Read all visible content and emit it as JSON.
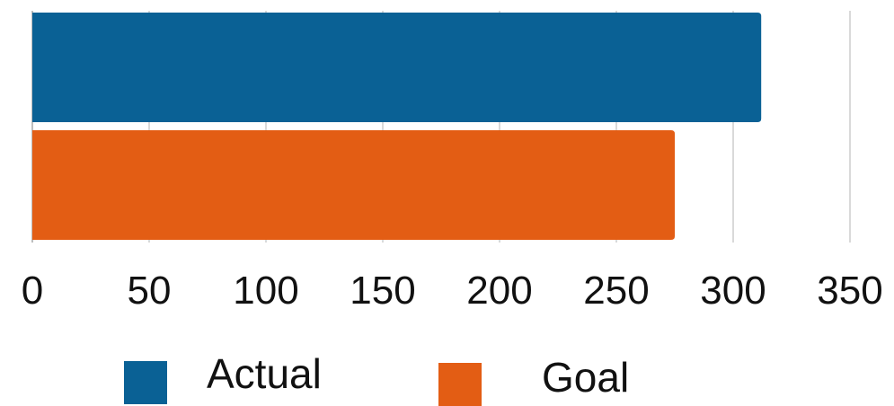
{
  "chart_data": {
    "type": "bar",
    "orientation": "horizontal",
    "categories": [
      ""
    ],
    "series": [
      {
        "name": "Actual",
        "values": [
          312
        ],
        "color": "#0a6195"
      },
      {
        "name": "Goal",
        "values": [
          275
        ],
        "color": "#e35d14"
      }
    ],
    "title": "",
    "xlabel": "",
    "ylabel": "",
    "xlim": [
      0,
      350
    ],
    "xticks": [
      0,
      50,
      100,
      150,
      200,
      250,
      300,
      350
    ],
    "xtick_labels": [
      "0",
      "50",
      "100",
      "150",
      "200",
      "250",
      "300",
      "350"
    ],
    "grid": true,
    "legend_position": "bottom"
  }
}
